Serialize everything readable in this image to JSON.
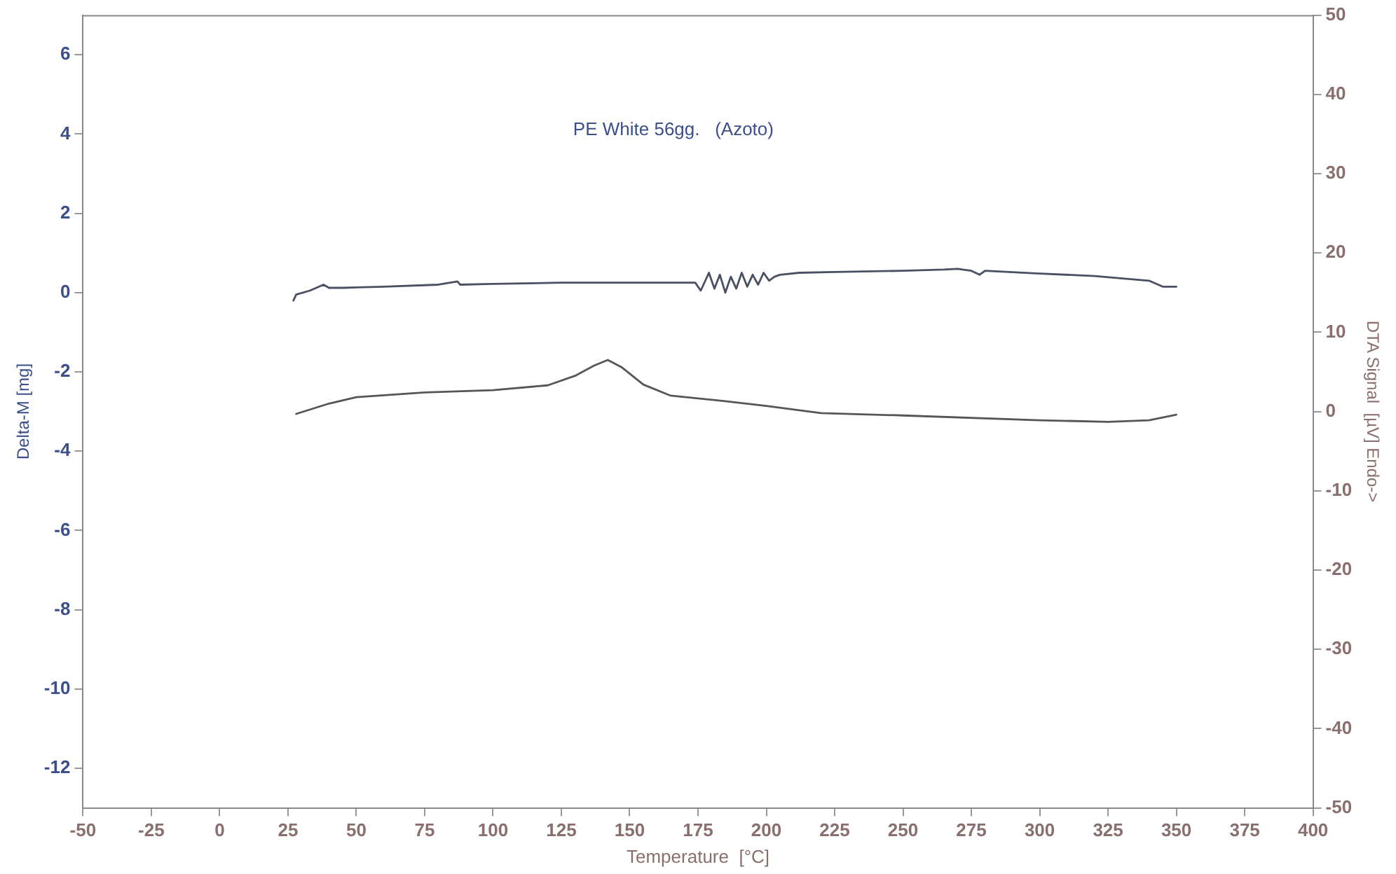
{
  "chart_data": {
    "type": "line",
    "title": "PE White 56gg.   (Azoto)",
    "xlabel": "Temperature  [°C]",
    "ylabel": "Delta-M [mg]",
    "y2label": "DTA Signal  [µV] Endo->",
    "xlim": [
      -50,
      400
    ],
    "xticks": [
      -50,
      -25,
      0,
      25,
      50,
      75,
      100,
      125,
      150,
      175,
      200,
      225,
      250,
      275,
      300,
      325,
      350,
      375,
      400
    ],
    "ylim": [
      -13,
      7
    ],
    "yticks": [
      -12,
      -10,
      -8,
      -6,
      -4,
      -2,
      0,
      2,
      4,
      6
    ],
    "y2lim": [
      -50,
      50
    ],
    "y2ticks": [
      -50,
      -40,
      -30,
      -20,
      -10,
      0,
      10,
      20,
      30,
      40,
      50
    ],
    "grid": false,
    "legend": false,
    "marker": "none",
    "line_style": "solid",
    "series": [
      {
        "color": "#4a4f62",
        "x": [
          27,
          28,
          33,
          38,
          40,
          45,
          60,
          80,
          87,
          88,
          100,
          125,
          150,
          174,
          176,
          179,
          181,
          183,
          185,
          187,
          189,
          191,
          193,
          195,
          197,
          199,
          201,
          203,
          205,
          212,
          225,
          250,
          265,
          270,
          275,
          278,
          280,
          300,
          320,
          340,
          345,
          350
        ],
        "values": [
          -0.2,
          -0.05,
          0.05,
          0.2,
          0.12,
          0.12,
          0.15,
          0.2,
          0.28,
          0.2,
          0.22,
          0.25,
          0.25,
          0.25,
          0.05,
          0.5,
          0.1,
          0.45,
          0.0,
          0.4,
          0.1,
          0.5,
          0.15,
          0.45,
          0.2,
          0.5,
          0.3,
          0.4,
          0.45,
          0.5,
          0.52,
          0.55,
          0.58,
          0.6,
          0.55,
          0.45,
          0.55,
          0.48,
          0.42,
          0.3,
          0.15,
          0.15
        ]
      },
      {
        "color": "#5a5555",
        "axis": "y2",
        "x": [
          28,
          40,
          50,
          75,
          100,
          120,
          130,
          137,
          142,
          147,
          155,
          165,
          185,
          200,
          220,
          250,
          300,
          325,
          340,
          350
        ],
        "values": [
          -0.3,
          1.0,
          1.8,
          2.4,
          2.7,
          3.3,
          4.5,
          5.8,
          6.5,
          5.6,
          3.4,
          2.0,
          1.3,
          0.7,
          -0.2,
          -0.5,
          -1.1,
          -1.3,
          -1.1,
          -0.4
        ]
      }
    ]
  }
}
